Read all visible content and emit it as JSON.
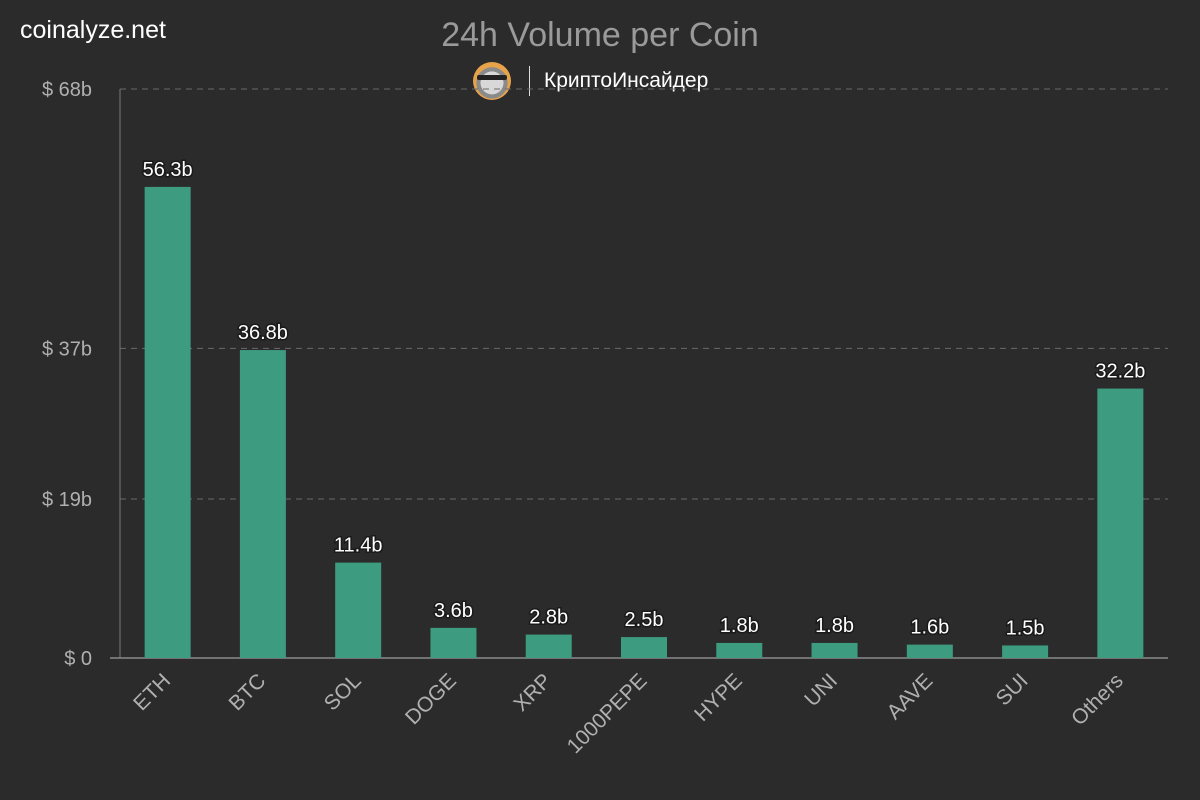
{
  "header": {
    "site": "coinalyze.net",
    "brand_name": "КриптоИнсайдер"
  },
  "colors": {
    "background": "#2b2b2b",
    "bar": "#3d9c80",
    "grid": "#6a6a6a",
    "axis_text": "#b0b0b0",
    "label_text": "#ffffff"
  },
  "chart_data": {
    "type": "bar",
    "title": "24h Volume per Coin",
    "categories": [
      "ETH",
      "BTC",
      "SOL",
      "DOGE",
      "XRP",
      "1000PEPE",
      "HYPE",
      "UNI",
      "AAVE",
      "SUI",
      "Others"
    ],
    "values": [
      56.3,
      36.8,
      11.4,
      3.6,
      2.8,
      2.5,
      1.8,
      1.8,
      1.6,
      1.5,
      32.2
    ],
    "data_labels": [
      "56.3b",
      "36.8b",
      "11.4b",
      "3.6b",
      "2.8b",
      "2.5b",
      "1.8b",
      "1.8b",
      "1.6b",
      "1.5b",
      "32.2b"
    ],
    "yticks": [
      0,
      19,
      37,
      68
    ],
    "ytick_labels": [
      "$ 0",
      "$ 19b",
      "$ 37b",
      "$ 68b"
    ],
    "ylim": [
      0,
      68
    ],
    "xlabel": "",
    "ylabel": "",
    "grid": true,
    "legend": false
  }
}
